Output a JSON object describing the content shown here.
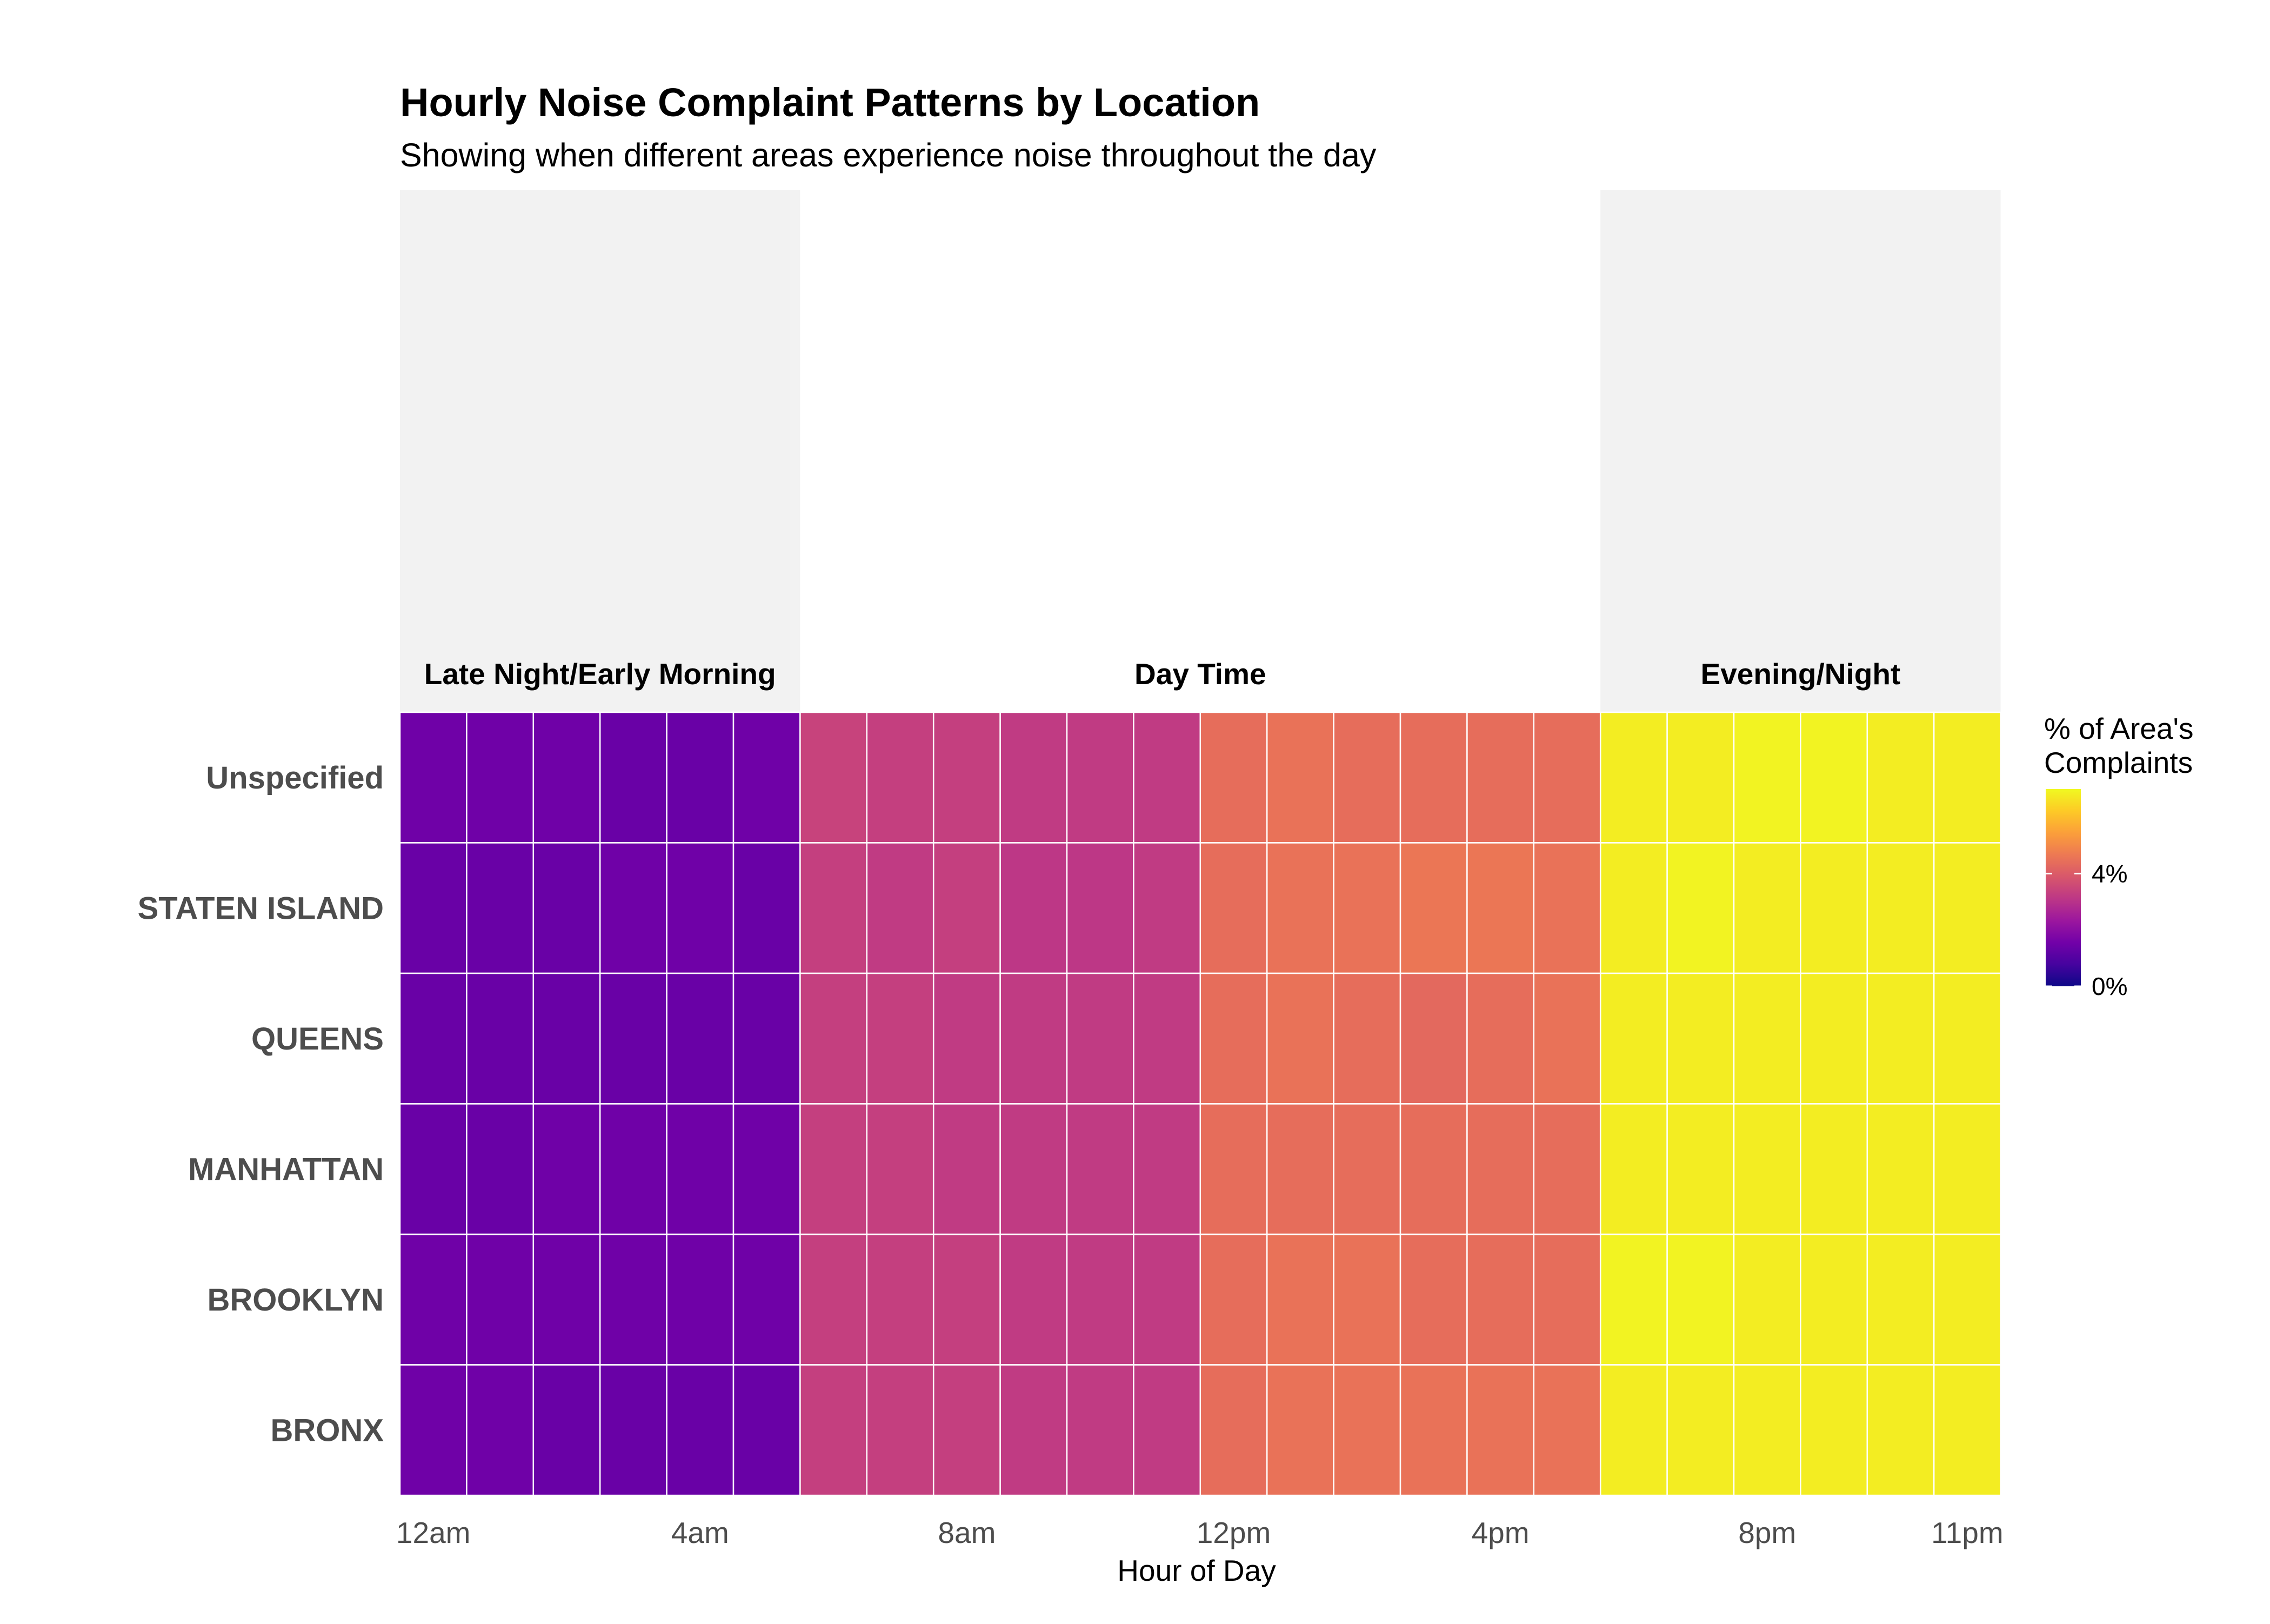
{
  "chart_data": {
    "type": "heatmap",
    "title": "Hourly Noise Complaint Patterns by Location",
    "subtitle": "Showing when different areas experience noise throughout the day",
    "xlabel": "Hour of Day",
    "ylabel": "",
    "periods": [
      {
        "label": "Late Night/Early Morning",
        "start_hour": 0,
        "end_hour": 5,
        "shaded": true
      },
      {
        "label": "Day Time",
        "start_hour": 6,
        "end_hour": 17,
        "shaded": false
      },
      {
        "label": "Evening/Night",
        "start_hour": 18,
        "end_hour": 23,
        "shaded": true
      }
    ],
    "x_ticks": [
      {
        "hour": 0,
        "label": "12am"
      },
      {
        "hour": 4,
        "label": "4am"
      },
      {
        "hour": 8,
        "label": "8am"
      },
      {
        "hour": 12,
        "label": "12pm"
      },
      {
        "hour": 16,
        "label": "4pm"
      },
      {
        "hour": 20,
        "label": "8pm"
      },
      {
        "hour": 23,
        "label": "11pm"
      }
    ],
    "hours": [
      0,
      1,
      2,
      3,
      4,
      5,
      6,
      7,
      8,
      9,
      10,
      11,
      12,
      13,
      14,
      15,
      16,
      17,
      18,
      19,
      20,
      21,
      22,
      23
    ],
    "rows_top_to_bottom": [
      "Unspecified",
      "STATEN ISLAND",
      "QUEENS",
      "MANHATTAN",
      "BROOKLYN",
      "BRONX"
    ],
    "values_percent": {
      "Unspecified": [
        1.5,
        1.5,
        1.5,
        1.4,
        1.4,
        1.5,
        3.4,
        3.3,
        3.3,
        3.2,
        3.2,
        3.2,
        4.4,
        4.5,
        4.4,
        4.4,
        4.4,
        4.4,
        6.8,
        6.8,
        6.9,
        6.9,
        6.8,
        6.8
      ],
      "STATEN ISLAND": [
        1.4,
        1.4,
        1.4,
        1.5,
        1.5,
        1.4,
        3.3,
        3.2,
        3.3,
        3.1,
        3.1,
        3.2,
        4.4,
        4.5,
        4.5,
        4.6,
        4.6,
        4.5,
        6.8,
        6.9,
        6.8,
        6.8,
        6.8,
        6.8
      ],
      "QUEENS": [
        1.4,
        1.4,
        1.4,
        1.4,
        1.4,
        1.4,
        3.3,
        3.3,
        3.2,
        3.2,
        3.2,
        3.2,
        4.4,
        4.5,
        4.4,
        4.3,
        4.4,
        4.5,
        6.8,
        6.8,
        6.8,
        6.8,
        6.8,
        6.8
      ],
      "MANHATTAN": [
        1.4,
        1.4,
        1.5,
        1.5,
        1.5,
        1.5,
        3.3,
        3.3,
        3.2,
        3.2,
        3.2,
        3.2,
        4.4,
        4.4,
        4.4,
        4.4,
        4.4,
        4.4,
        6.8,
        6.8,
        6.8,
        6.8,
        6.8,
        6.8
      ],
      "BROOKLYN": [
        1.5,
        1.5,
        1.5,
        1.5,
        1.5,
        1.5,
        3.3,
        3.3,
        3.3,
        3.2,
        3.2,
        3.2,
        4.4,
        4.5,
        4.5,
        4.4,
        4.4,
        4.4,
        6.9,
        6.9,
        6.8,
        6.8,
        6.8,
        6.8
      ],
      "BRONX": [
        1.5,
        1.5,
        1.4,
        1.4,
        1.4,
        1.4,
        3.3,
        3.3,
        3.3,
        3.2,
        3.2,
        3.2,
        4.4,
        4.5,
        4.5,
        4.5,
        4.5,
        4.5,
        6.8,
        6.8,
        6.8,
        6.8,
        6.8,
        6.8
      ]
    },
    "legend": {
      "title_lines": [
        "% of Area's",
        "Complaints"
      ],
      "ticks": [
        {
          "value": 0,
          "label": "0%"
        },
        {
          "value": 4,
          "label": "4%"
        }
      ],
      "range": [
        0,
        7
      ],
      "colormap": "plasma",
      "placement": "right"
    },
    "colors": {
      "shade": "#f2f2f2",
      "grid_line": "#ffffff",
      "plasma": [
        "#0d0887",
        "#46039f",
        "#7201a8",
        "#9c179e",
        "#bd3786",
        "#d8576b",
        "#ed7953",
        "#fb9f3a",
        "#fdca26",
        "#f0f921"
      ]
    },
    "grid": false
  }
}
